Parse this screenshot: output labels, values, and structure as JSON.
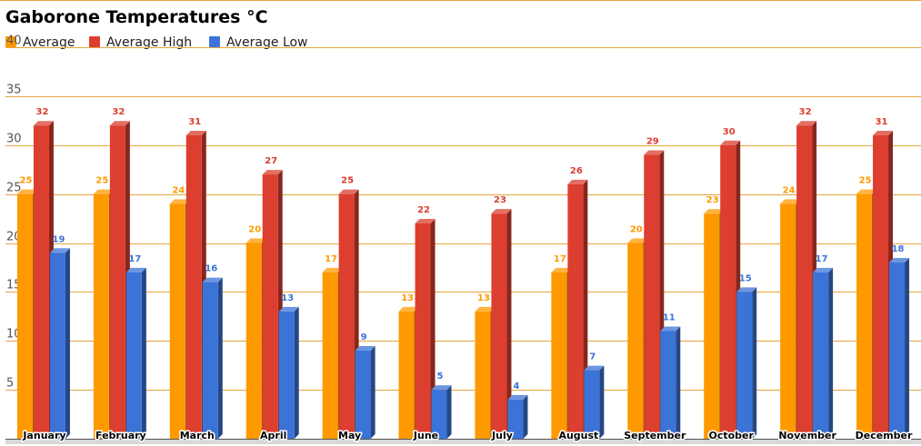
{
  "chart_data": {
    "type": "bar",
    "title": "Gaborone Temperatures °C",
    "categories": [
      "January",
      "February",
      "March",
      "April",
      "May",
      "June",
      "July",
      "August",
      "September",
      "October",
      "November",
      "December"
    ],
    "series": [
      {
        "name": "Average",
        "color": "#ff9900",
        "values": [
          25,
          25,
          24,
          20,
          17,
          13,
          13,
          17,
          20,
          23,
          24,
          25
        ]
      },
      {
        "name": "Average High",
        "color": "#dc3e2f",
        "values": [
          32,
          32,
          31,
          27,
          25,
          22,
          23,
          26,
          29,
          30,
          32,
          31
        ]
      },
      {
        "name": "Average Low",
        "color": "#3b73d7",
        "values": [
          19,
          17,
          16,
          13,
          9,
          5,
          4,
          7,
          11,
          15,
          17,
          18
        ]
      }
    ],
    "ylim": [
      0,
      40
    ],
    "yticks": [
      5,
      10,
      15,
      20,
      25,
      30,
      35,
      40
    ],
    "grid": true,
    "legend": "top-left",
    "grid_color": "#e5a43d"
  }
}
